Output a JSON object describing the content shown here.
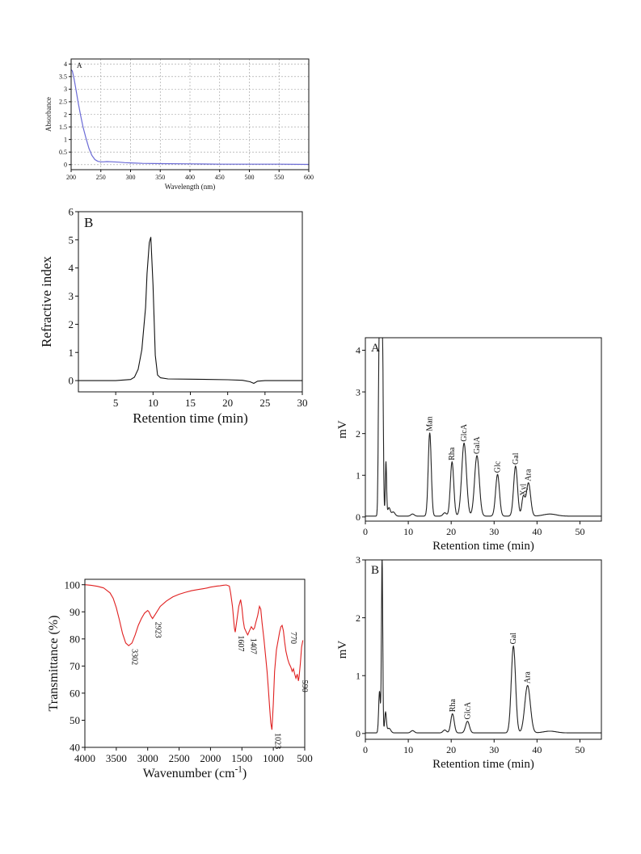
{
  "chart_data": [
    {
      "id": "uv",
      "type": "line",
      "panel_label": "A",
      "xlabel": "Wavelength (nm)",
      "ylabel": "Absorbance",
      "xlim": [
        200,
        600
      ],
      "ylim": [
        -0.2,
        4.2
      ],
      "xticks": [
        200,
        250,
        300,
        350,
        400,
        450,
        500,
        550,
        600
      ],
      "yticks": [
        0,
        0.5,
        1,
        1.5,
        2,
        2.5,
        3,
        3.5,
        4
      ],
      "ytick_labels": [
        "0",
        "0.5",
        "1",
        "1.5",
        "2",
        "2.5",
        "3",
        "3.5",
        "4"
      ],
      "grid": true,
      "color": "#6b6bd6",
      "x": [
        200,
        202,
        205,
        208,
        212,
        216,
        220,
        225,
        230,
        235,
        240,
        245,
        250,
        255,
        260,
        270,
        280,
        290,
        300,
        320,
        350,
        400,
        450,
        500,
        550,
        600
      ],
      "y": [
        3.78,
        3.72,
        3.4,
        3.0,
        2.45,
        1.95,
        1.5,
        1.05,
        0.65,
        0.37,
        0.2,
        0.13,
        0.11,
        0.11,
        0.12,
        0.11,
        0.1,
        0.08,
        0.07,
        0.05,
        0.04,
        0.03,
        0.02,
        0.02,
        0.02,
        0.01
      ]
    },
    {
      "id": "gpc",
      "type": "line",
      "panel_label": "B",
      "xlabel": "Retention time (min)",
      "ylabel": "Refractive index",
      "xlim": [
        0,
        30
      ],
      "ylim": [
        -0.4,
        6
      ],
      "xticks": [
        5,
        10,
        15,
        20,
        25,
        30
      ],
      "yticks": [
        0,
        1,
        2,
        3,
        4,
        5,
        6
      ],
      "color": "#111111",
      "x": [
        0,
        5,
        7,
        7.5,
        8,
        8.5,
        9,
        9.2,
        9.5,
        9.7,
        10,
        10.3,
        10.6,
        11,
        12,
        15,
        20,
        22,
        23,
        23.5,
        24,
        25,
        30
      ],
      "y": [
        0,
        0,
        0.04,
        0.12,
        0.4,
        1.1,
        2.6,
        3.8,
        4.9,
        5.1,
        3.4,
        0.9,
        0.2,
        0.1,
        0.06,
        0.05,
        0.03,
        0.01,
        -0.04,
        -0.1,
        -0.02,
        0,
        0
      ]
    },
    {
      "id": "ftir",
      "type": "line",
      "xlabel": "Wavenumber (cm",
      "xlabel_sup": "-1",
      "xlabel_close": ")",
      "ylabel": "Transmittance (%)",
      "xlim": [
        4000,
        500
      ],
      "ylim": [
        40,
        102
      ],
      "xticks": [
        4000,
        3500,
        3000,
        2500,
        2000,
        1500,
        1000,
        500
      ],
      "yticks": [
        40,
        50,
        60,
        70,
        80,
        90,
        100
      ],
      "color": "#e02020",
      "x": [
        4000,
        3900,
        3800,
        3700,
        3600,
        3550,
        3500,
        3450,
        3400,
        3350,
        3302,
        3250,
        3200,
        3150,
        3100,
        3050,
        3000,
        2980,
        2950,
        2923,
        2880,
        2800,
        2700,
        2600,
        2500,
        2400,
        2300,
        2200,
        2100,
        2050,
        2000,
        1950,
        1900,
        1850,
        1800,
        1750,
        1700,
        1680,
        1650,
        1620,
        1607,
        1580,
        1550,
        1520,
        1500,
        1480,
        1460,
        1440,
        1420,
        1407,
        1380,
        1350,
        1320,
        1300,
        1280,
        1250,
        1220,
        1200,
        1180,
        1150,
        1120,
        1100,
        1080,
        1060,
        1040,
        1023,
        1000,
        980,
        950,
        920,
        900,
        880,
        860,
        840,
        820,
        800,
        770,
        750,
        720,
        700,
        680,
        660,
        640,
        620,
        600,
        590,
        570,
        550,
        530
      ],
      "y": [
        100,
        99.8,
        99.4,
        98.8,
        97,
        95,
        91.5,
        87,
        82,
        78.5,
        77.5,
        78.5,
        81.5,
        85,
        87.5,
        89.5,
        90.5,
        90,
        88.5,
        87.5,
        89,
        92,
        94,
        95.5,
        96.5,
        97.2,
        97.8,
        98.2,
        98.6,
        98.8,
        99.1,
        99.3,
        99.5,
        99.6,
        99.8,
        99.9,
        99.5,
        97,
        92,
        84,
        82.5,
        87,
        92,
        94.5,
        91.5,
        87,
        84,
        83,
        82,
        81.5,
        83,
        84.5,
        83.5,
        84,
        86,
        88.5,
        92,
        91,
        86,
        80,
        73,
        68,
        62,
        55,
        49,
        46.5,
        56,
        68,
        76,
        80,
        82.5,
        84.5,
        85,
        83,
        79,
        75.5,
        72.5,
        71,
        69.5,
        68,
        69,
        67,
        65.5,
        67,
        64.5,
        66,
        71,
        77,
        79.5
      ]
    },
    {
      "id": "hplc_a",
      "type": "line",
      "panel_label": "A",
      "xlabel": "Retention time (min)",
      "ylabel": "mV",
      "xlim": [
        0,
        55
      ],
      "ylim": [
        -0.1,
        4.3
      ],
      "xticks": [
        0,
        10,
        20,
        30,
        40,
        50
      ],
      "yticks": [
        0,
        1,
        2,
        3,
        4
      ],
      "color": "#222222",
      "baseline": 0.02,
      "peaks": [
        {
          "x": 3.2,
          "y": 4.0,
          "w": 0.18
        },
        {
          "x": 3.6,
          "y": 4.0,
          "w": 0.18
        },
        {
          "x": 4.0,
          "y": 4.0,
          "w": 0.18
        },
        {
          "x": 4.8,
          "y": 1.3,
          "w": 0.15
        },
        {
          "x": 5.5,
          "y": 0.2,
          "w": 0.3
        },
        {
          "x": 6.5,
          "y": 0.1,
          "w": 0.4
        },
        {
          "x": 11,
          "y": 0.05,
          "w": 0.4
        },
        {
          "x": 15,
          "y": 2.0,
          "w": 0.35
        },
        {
          "x": 18.5,
          "y": 0.08,
          "w": 0.4
        },
        {
          "x": 20.2,
          "y": 1.3,
          "w": 0.4
        },
        {
          "x": 23,
          "y": 1.75,
          "w": 0.55
        },
        {
          "x": 26,
          "y": 1.45,
          "w": 0.55
        },
        {
          "x": 30.8,
          "y": 1.0,
          "w": 0.45
        },
        {
          "x": 35,
          "y": 1.2,
          "w": 0.45
        },
        {
          "x": 36.8,
          "y": 0.45,
          "w": 0.35
        },
        {
          "x": 38,
          "y": 0.8,
          "w": 0.5
        },
        {
          "x": 43,
          "y": 0.05,
          "w": 1.5
        }
      ],
      "annotations": [
        {
          "label": "Man",
          "x": 15,
          "y": 2.0
        },
        {
          "label": "Rha",
          "x": 20.2,
          "y": 1.3
        },
        {
          "label": "GlcA",
          "x": 23,
          "y": 1.75
        },
        {
          "label": "GalA",
          "x": 26,
          "y": 1.45
        },
        {
          "label": "Glc",
          "x": 30.8,
          "y": 1.0
        },
        {
          "label": "Gal",
          "x": 35,
          "y": 1.2
        },
        {
          "label": "Xyl",
          "x": 36.8,
          "y": 0.45
        },
        {
          "label": "Ara",
          "x": 38,
          "y": 0.8
        }
      ]
    },
    {
      "id": "hplc_b",
      "type": "line",
      "panel_label": "B",
      "xlabel": "Retention time (min)",
      "ylabel": "mV",
      "xlim": [
        0,
        55
      ],
      "ylim": [
        -0.1,
        3.0
      ],
      "xticks": [
        0,
        10,
        20,
        30,
        40,
        50
      ],
      "yticks": [
        0,
        1,
        2,
        3
      ],
      "color": "#222222",
      "baseline": 0.01,
      "peaks": [
        {
          "x": 3.3,
          "y": 0.72,
          "w": 0.2
        },
        {
          "x": 3.9,
          "y": 3.0,
          "w": 0.15
        },
        {
          "x": 4.7,
          "y": 0.35,
          "w": 0.2
        },
        {
          "x": 5.5,
          "y": 0.08,
          "w": 0.4
        },
        {
          "x": 11,
          "y": 0.04,
          "w": 0.4
        },
        {
          "x": 18.5,
          "y": 0.05,
          "w": 0.4
        },
        {
          "x": 20.3,
          "y": 0.33,
          "w": 0.4
        },
        {
          "x": 23.8,
          "y": 0.2,
          "w": 0.45
        },
        {
          "x": 34.5,
          "y": 1.5,
          "w": 0.5
        },
        {
          "x": 37.8,
          "y": 0.82,
          "w": 0.65
        },
        {
          "x": 43,
          "y": 0.03,
          "w": 1.5
        }
      ],
      "annotations": [
        {
          "label": "Rha",
          "x": 20.3,
          "y": 0.33
        },
        {
          "label": "GlcA",
          "x": 23.8,
          "y": 0.2
        },
        {
          "label": "Gal",
          "x": 34.5,
          "y": 1.5
        },
        {
          "label": "Ara",
          "x": 37.8,
          "y": 0.82
        }
      ]
    }
  ]
}
